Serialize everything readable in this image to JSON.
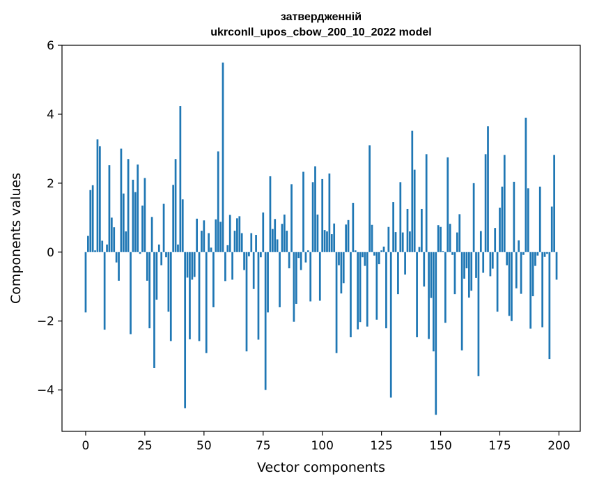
{
  "chart_data": {
    "type": "bar",
    "title_line1": "затвердженній",
    "title_line2": "ukrconll_upos_cbow_200_10_2022 model",
    "xlabel": "Vector components",
    "ylabel": "Components values",
    "xlim": [
      -10,
      209
    ],
    "ylim": [
      -5.2,
      6
    ],
    "xticks": [
      0,
      25,
      50,
      75,
      100,
      125,
      150,
      175,
      200
    ],
    "yticks": [
      -4,
      -2,
      0,
      2,
      4,
      6
    ],
    "ytick_labels": [
      "−4",
      "−2",
      "0",
      "2",
      "4",
      "6"
    ],
    "bar_color": "#1f77b4",
    "x": [
      0,
      1,
      2,
      3,
      4,
      5,
      6,
      7,
      8,
      9,
      10,
      11,
      12,
      13,
      14,
      15,
      16,
      17,
      18,
      19,
      20,
      21,
      22,
      23,
      24,
      25,
      26,
      27,
      28,
      29,
      30,
      31,
      32,
      33,
      34,
      35,
      36,
      37,
      38,
      39,
      40,
      41,
      42,
      43,
      44,
      45,
      46,
      47,
      48,
      49,
      50,
      51,
      52,
      53,
      54,
      55,
      56,
      57,
      58,
      59,
      60,
      61,
      62,
      63,
      64,
      65,
      66,
      67,
      68,
      69,
      70,
      71,
      72,
      73,
      74,
      75,
      76,
      77,
      78,
      79,
      80,
      81,
      82,
      83,
      84,
      85,
      86,
      87,
      88,
      89,
      90,
      91,
      92,
      93,
      94,
      95,
      96,
      97,
      98,
      99,
      100,
      101,
      102,
      103,
      104,
      105,
      106,
      107,
      108,
      109,
      110,
      111,
      112,
      113,
      114,
      115,
      116,
      117,
      118,
      119,
      120,
      121,
      122,
      123,
      124,
      125,
      126,
      127,
      128,
      129,
      130,
      131,
      132,
      133,
      134,
      135,
      136,
      137,
      138,
      139,
      140,
      141,
      142,
      143,
      144,
      145,
      146,
      147,
      148,
      149,
      150,
      151,
      152,
      153,
      154,
      155,
      156,
      157,
      158,
      159,
      160,
      161,
      162,
      163,
      164,
      165,
      166,
      167,
      168,
      169,
      170,
      171,
      172,
      173,
      174,
      175,
      176,
      177,
      178,
      179,
      180,
      181,
      182,
      183,
      184,
      185,
      186,
      187,
      188,
      189,
      190,
      191,
      192,
      193,
      194,
      195,
      196,
      197,
      198,
      199
    ],
    "values": [
      -1.75,
      0.47,
      1.8,
      1.94,
      0.05,
      3.27,
      3.07,
      0.33,
      -2.25,
      0.22,
      2.52,
      1.0,
      0.72,
      -0.3,
      -0.83,
      3.0,
      1.7,
      0.6,
      2.7,
      -2.38,
      2.1,
      1.74,
      2.54,
      -0.05,
      1.35,
      2.15,
      -0.83,
      -2.21,
      1.02,
      -3.36,
      -1.38,
      0.22,
      -0.38,
      1.4,
      -0.15,
      -1.73,
      -2.58,
      1.95,
      2.7,
      0.22,
      4.24,
      1.53,
      -4.53,
      -0.74,
      -2.53,
      -0.8,
      -0.72,
      0.97,
      -2.58,
      0.62,
      0.92,
      -2.93,
      0.55,
      0.13,
      -1.6,
      0.95,
      2.92,
      0.88,
      5.5,
      -0.84,
      0.2,
      1.08,
      -0.8,
      0.62,
      0.98,
      1.04,
      0.55,
      -0.52,
      -2.88,
      -0.12,
      0.55,
      -1.07,
      0.5,
      -2.54,
      -0.15,
      1.15,
      -4.0,
      -1.75,
      2.2,
      0.67,
      0.96,
      0.37,
      -1.6,
      0.82,
      1.09,
      0.62,
      -0.47,
      1.97,
      -2.02,
      -1.5,
      -0.17,
      -0.52,
      2.33,
      -0.3,
      0.05,
      -1.43,
      2.03,
      2.49,
      1.09,
      -1.41,
      2.12,
      0.64,
      0.6,
      2.28,
      0.52,
      0.83,
      -2.93,
      -0.38,
      -1.2,
      -0.9,
      0.8,
      0.93,
      -2.47,
      1.43,
      0.05,
      -2.24,
      -2.03,
      -0.15,
      -0.4,
      -2.16,
      3.1,
      0.79,
      -0.1,
      -1.96,
      -0.35,
      0.05,
      0.16,
      -2.21,
      0.73,
      -4.22,
      1.45,
      0.58,
      -1.22,
      2.03,
      0.57,
      -0.65,
      1.25,
      0.6,
      3.52,
      2.39,
      -2.47,
      0.15,
      1.25,
      -1.0,
      2.84,
      -2.52,
      -1.33,
      -2.88,
      -4.72,
      0.78,
      0.73,
      0.03,
      -2.05,
      2.75,
      0.82,
      -0.08,
      -1.22,
      0.57,
      1.1,
      -2.85,
      -0.77,
      -0.47,
      -1.32,
      -1.12,
      2.0,
      -0.75,
      -3.6,
      0.61,
      -0.6,
      2.84,
      3.65,
      -0.7,
      -0.48,
      0.7,
      -1.73,
      1.29,
      1.9,
      2.82,
      -0.38,
      -1.85,
      -2.0,
      2.04,
      -1.05,
      0.34,
      -1.21,
      -0.08,
      3.9,
      1.85,
      -2.22,
      -1.28,
      -0.4,
      -0.1,
      1.9,
      -2.18,
      -0.14,
      -0.05,
      -3.1,
      1.32,
      2.82,
      -0.8
    ]
  }
}
